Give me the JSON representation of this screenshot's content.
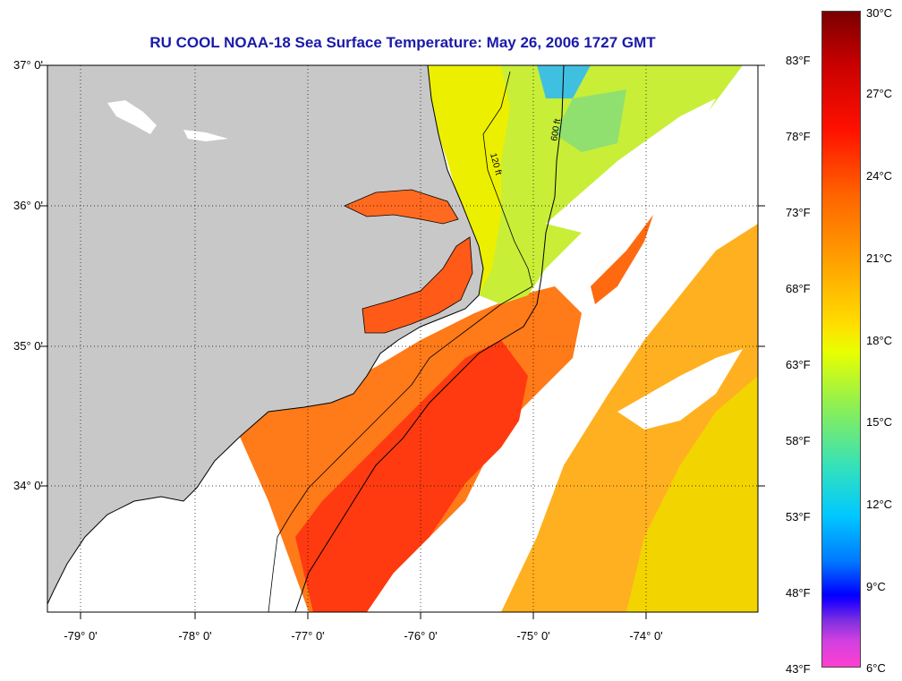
{
  "title": "RU COOL  NOAA-18  Sea Surface Temperature:  May 26, 2006 1727 GMT",
  "map": {
    "extent": {
      "lon_min": -79.3,
      "lon_max": -73.2,
      "lat_min": 33.25,
      "lat_max": 37.0
    },
    "lat_labels": [
      "37° 0'",
      "36° 0'",
      "35° 0'",
      "34° 0'"
    ],
    "lon_labels": [
      "-79° 0'",
      "-78° 0'",
      "-77° 0'",
      "-76° 0'",
      "-75° 0'",
      "-74° 0'"
    ],
    "colors": {
      "land": "#c8c8c8",
      "cloud": "#ffffff",
      "frame": "#000000"
    }
  },
  "isobaths": [
    "120 ft",
    "600 ft"
  ],
  "colorbar": {
    "fahrenheit_labels": [
      "83°F",
      "78°F",
      "73°F",
      "68°F",
      "63°F",
      "58°F",
      "53°F",
      "48°F",
      "43°F"
    ],
    "celsius_labels": [
      "30°C",
      "27°C",
      "24°C",
      "21°C",
      "18°C",
      "15°C",
      "12°C",
      "9°C",
      "6°C"
    ]
  }
}
